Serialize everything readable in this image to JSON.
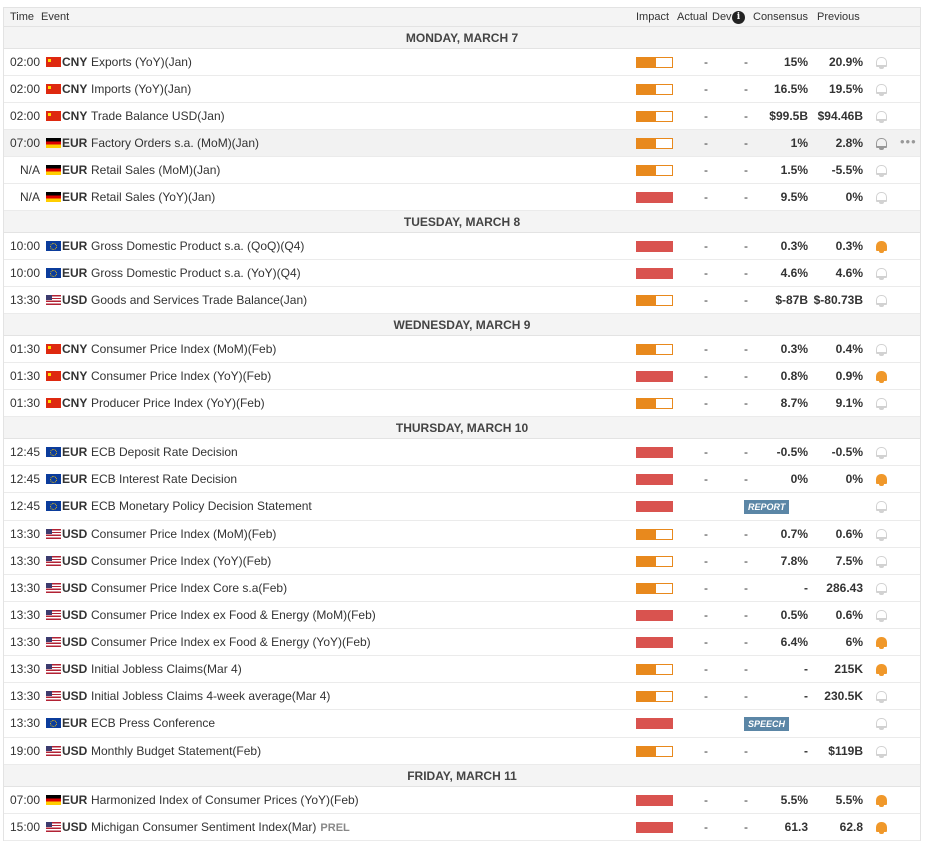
{
  "header": {
    "time": "Time",
    "event": "Event",
    "impact": "Impact",
    "actual": "Actual",
    "dev": "Dev",
    "consensus": "Consensus",
    "previous": "Previous",
    "info_icon": "info-icon"
  },
  "days": [
    {
      "label": "MONDAY, MARCH 7",
      "events": [
        {
          "time": "02:00",
          "flag": "cny",
          "cur": "CNY",
          "name": "Exports (YoY)(Jan)",
          "impact": "medium",
          "actual": "-",
          "dev": "-",
          "cons": "15%",
          "prev": "20.9%",
          "bell": "off"
        },
        {
          "time": "02:00",
          "flag": "cny",
          "cur": "CNY",
          "name": "Imports (YoY)(Jan)",
          "impact": "medium",
          "actual": "-",
          "dev": "-",
          "cons": "16.5%",
          "prev": "19.5%",
          "bell": "off"
        },
        {
          "time": "02:00",
          "flag": "cny",
          "cur": "CNY",
          "name": "Trade Balance USD(Jan)",
          "impact": "medium",
          "actual": "-",
          "dev": "-",
          "cons": "$99.5B",
          "prev": "$94.46B",
          "bell": "off"
        },
        {
          "time": "07:00",
          "flag": "deu",
          "cur": "EUR",
          "name": "Factory Orders s.a. (MoM)(Jan)",
          "impact": "medium",
          "actual": "-",
          "dev": "-",
          "cons": "1%",
          "prev": "2.8%",
          "bell": "hover",
          "highlight": true,
          "more": "•••"
        },
        {
          "time": "N/A",
          "flag": "deu",
          "cur": "EUR",
          "name": "Retail Sales (MoM)(Jan)",
          "impact": "medium",
          "actual": "-",
          "dev": "-",
          "cons": "1.5%",
          "prev": "-5.5%",
          "bell": "off"
        },
        {
          "time": "N/A",
          "flag": "deu",
          "cur": "EUR",
          "name": "Retail Sales (YoY)(Jan)",
          "impact": "high",
          "actual": "-",
          "dev": "-",
          "cons": "9.5%",
          "prev": "0%",
          "bell": "off"
        }
      ]
    },
    {
      "label": "TUESDAY, MARCH 8",
      "events": [
        {
          "time": "10:00",
          "flag": "eur",
          "cur": "EUR",
          "name": "Gross Domestic Product s.a. (QoQ)(Q4)",
          "impact": "high",
          "actual": "-",
          "dev": "-",
          "cons": "0.3%",
          "prev": "0.3%",
          "bell": "on"
        },
        {
          "time": "10:00",
          "flag": "eur",
          "cur": "EUR",
          "name": "Gross Domestic Product s.a. (YoY)(Q4)",
          "impact": "high",
          "actual": "-",
          "dev": "-",
          "cons": "4.6%",
          "prev": "4.6%",
          "bell": "off"
        },
        {
          "time": "13:30",
          "flag": "usa",
          "cur": "USD",
          "name": "Goods and Services Trade Balance(Jan)",
          "impact": "medium",
          "actual": "-",
          "dev": "-",
          "cons": "$-87B",
          "prev": "$-80.73B",
          "bell": "off"
        }
      ]
    },
    {
      "label": "WEDNESDAY, MARCH 9",
      "events": [
        {
          "time": "01:30",
          "flag": "cny",
          "cur": "CNY",
          "name": "Consumer Price Index (MoM)(Feb)",
          "impact": "medium",
          "actual": "-",
          "dev": "-",
          "cons": "0.3%",
          "prev": "0.4%",
          "bell": "off"
        },
        {
          "time": "01:30",
          "flag": "cny",
          "cur": "CNY",
          "name": "Consumer Price Index (YoY)(Feb)",
          "impact": "high",
          "actual": "-",
          "dev": "-",
          "cons": "0.8%",
          "prev": "0.9%",
          "bell": "on"
        },
        {
          "time": "01:30",
          "flag": "cny",
          "cur": "CNY",
          "name": "Producer Price Index (YoY)(Feb)",
          "impact": "medium",
          "actual": "-",
          "dev": "-",
          "cons": "8.7%",
          "prev": "9.1%",
          "bell": "off"
        }
      ]
    },
    {
      "label": "THURSDAY, MARCH 10",
      "events": [
        {
          "time": "12:45",
          "flag": "eur",
          "cur": "EUR",
          "name": "ECB Deposit Rate Decision",
          "impact": "high",
          "actual": "-",
          "dev": "-",
          "cons": "-0.5%",
          "prev": "-0.5%",
          "bell": "off"
        },
        {
          "time": "12:45",
          "flag": "eur",
          "cur": "EUR",
          "name": "ECB Interest Rate Decision",
          "impact": "high",
          "actual": "-",
          "dev": "-",
          "cons": "0%",
          "prev": "0%",
          "bell": "on"
        },
        {
          "time": "12:45",
          "flag": "eur",
          "cur": "EUR",
          "name": "ECB Monetary Policy Decision Statement",
          "impact": "high",
          "badge": "REPORT",
          "bell": "off",
          "tall": true
        },
        {
          "time": "13:30",
          "flag": "usa",
          "cur": "USD",
          "name": "Consumer Price Index (MoM)(Feb)",
          "impact": "medium",
          "actual": "-",
          "dev": "-",
          "cons": "0.7%",
          "prev": "0.6%",
          "bell": "off"
        },
        {
          "time": "13:30",
          "flag": "usa",
          "cur": "USD",
          "name": "Consumer Price Index (YoY)(Feb)",
          "impact": "medium",
          "actual": "-",
          "dev": "-",
          "cons": "7.8%",
          "prev": "7.5%",
          "bell": "off"
        },
        {
          "time": "13:30",
          "flag": "usa",
          "cur": "USD",
          "name": "Consumer Price Index Core s.a(Feb)",
          "impact": "medium",
          "actual": "-",
          "dev": "-",
          "cons": "-",
          "prev": "286.43",
          "bell": "off"
        },
        {
          "time": "13:30",
          "flag": "usa",
          "cur": "USD",
          "name": "Consumer Price Index ex Food & Energy (MoM)(Feb)",
          "impact": "high",
          "actual": "-",
          "dev": "-",
          "cons": "0.5%",
          "prev": "0.6%",
          "bell": "off"
        },
        {
          "time": "13:30",
          "flag": "usa",
          "cur": "USD",
          "name": "Consumer Price Index ex Food & Energy (YoY)(Feb)",
          "impact": "high",
          "actual": "-",
          "dev": "-",
          "cons": "6.4%",
          "prev": "6%",
          "bell": "on"
        },
        {
          "time": "13:30",
          "flag": "usa",
          "cur": "USD",
          "name": "Initial Jobless Claims(Mar 4)",
          "impact": "medium",
          "actual": "-",
          "dev": "-",
          "cons": "-",
          "prev": "215K",
          "bell": "on"
        },
        {
          "time": "13:30",
          "flag": "usa",
          "cur": "USD",
          "name": "Initial Jobless Claims 4-week average(Mar 4)",
          "impact": "medium",
          "actual": "-",
          "dev": "-",
          "cons": "-",
          "prev": "230.5K",
          "bell": "off"
        },
        {
          "time": "13:30",
          "flag": "eur",
          "cur": "EUR",
          "name": "ECB Press Conference",
          "impact": "high",
          "badge": "SPEECH",
          "bell": "off",
          "tall": true
        },
        {
          "time": "19:00",
          "flag": "usa",
          "cur": "USD",
          "name": "Monthly Budget Statement(Feb)",
          "impact": "medium",
          "actual": "-",
          "dev": "-",
          "cons": "-",
          "prev": "$119B",
          "bell": "off"
        }
      ]
    },
    {
      "label": "FRIDAY, MARCH 11",
      "events": [
        {
          "time": "07:00",
          "flag": "deu",
          "cur": "EUR",
          "name": "Harmonized Index of Consumer Prices (YoY)(Feb)",
          "impact": "high",
          "actual": "-",
          "dev": "-",
          "cons": "5.5%",
          "prev": "5.5%",
          "bell": "on"
        },
        {
          "time": "15:00",
          "flag": "usa",
          "cur": "USD",
          "name": "Michigan Consumer Sentiment Index(Mar)",
          "tag": "PREL",
          "impact": "high",
          "actual": "-",
          "dev": "-",
          "cons": "61.3",
          "prev": "62.8",
          "bell": "on"
        }
      ]
    }
  ]
}
